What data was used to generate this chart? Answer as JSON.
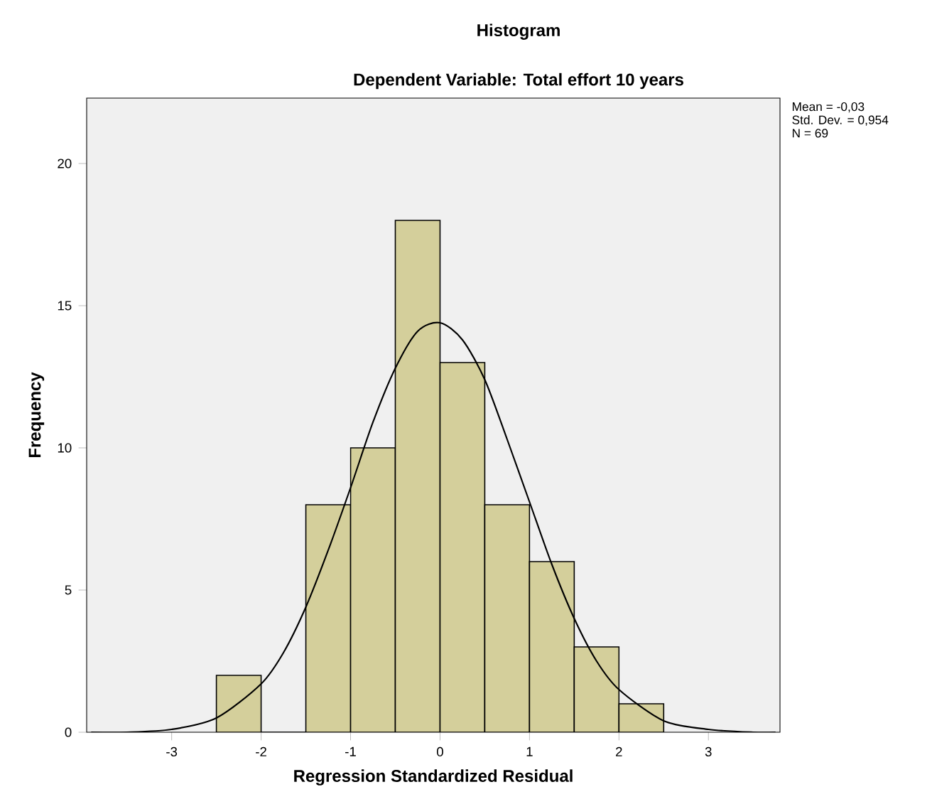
{
  "chart_data": {
    "type": "histogram",
    "title": "Histogram",
    "subtitle": "Dependent Variable: Total effort 10 years",
    "xlabel": "Regression Standardized Residual",
    "ylabel": "Frequency",
    "annotations": [
      "Mean = -0,03",
      "Std. Dev. = 0,954",
      "N = 69"
    ],
    "series": [
      {
        "type": "histogram",
        "color": "#d4cf9b",
        "bins": [
          -2.5,
          -2,
          -1.5,
          -1,
          -0.5,
          0,
          0.5,
          1,
          1.5,
          2,
          2.5
        ],
        "values": [
          2,
          0,
          8,
          10,
          18,
          13,
          8,
          6,
          3,
          1
        ]
      },
      {
        "type": "line",
        "color": "#000000",
        "x": [
          -3.9,
          -3.5,
          -3,
          -2.5,
          -2,
          -1.75,
          -1.5,
          -1.25,
          -1,
          -0.75,
          -0.5,
          -0.25,
          0,
          0.25,
          0.5,
          0.75,
          1,
          1.25,
          1.5,
          1.75,
          2,
          2.5,
          3,
          3.5,
          3.75
        ],
        "values": [
          0,
          0,
          0.1,
          0.5,
          1.7,
          2.8,
          4.4,
          6.4,
          8.6,
          10.9,
          12.8,
          14.1,
          14.4,
          13.8,
          12.4,
          10.3,
          8.1,
          5.9,
          4,
          2.5,
          1.5,
          0.4,
          0.1,
          0,
          0
        ]
      }
    ],
    "xlim": [
      -3.95,
      3.8
    ],
    "ylim": [
      0,
      22.3
    ],
    "xticks": [
      -3,
      -2,
      -1,
      0,
      1,
      2,
      3
    ],
    "yticks": [
      0,
      5,
      10,
      15,
      20
    ]
  }
}
